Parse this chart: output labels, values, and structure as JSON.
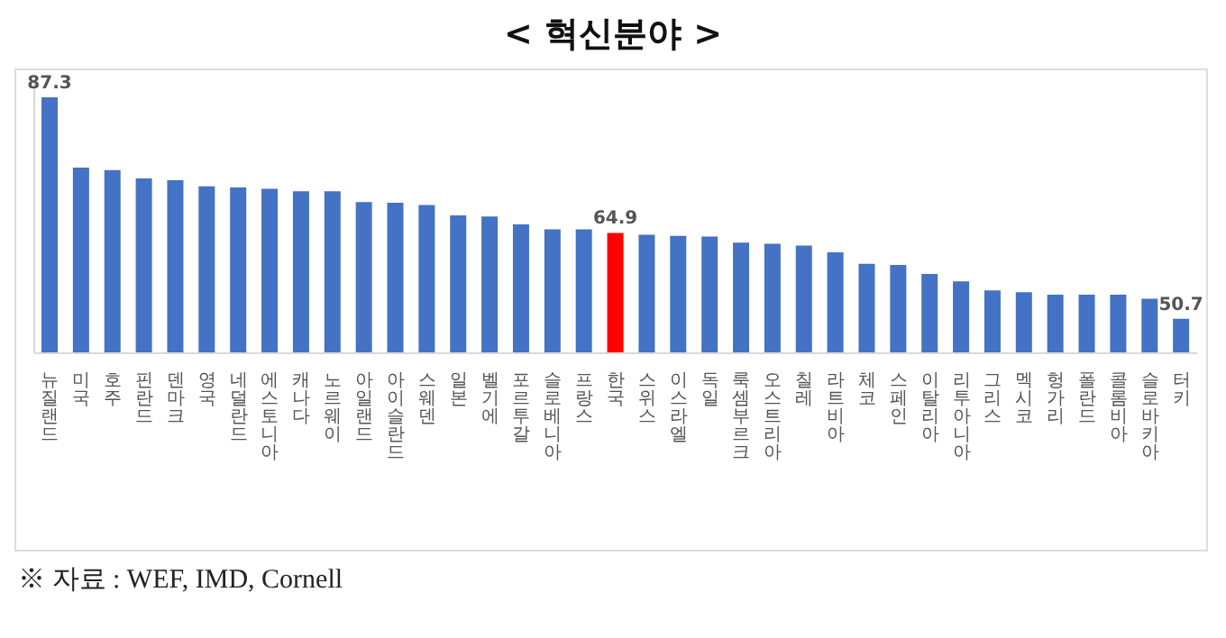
{
  "chart_data": {
    "type": "bar",
    "title": "< 혁신분야 >",
    "categories": [
      "뉴질랜드",
      "미국",
      "호주",
      "핀란드",
      "덴마크",
      "영국",
      "네덜란드",
      "에스토니아",
      "캐나다",
      "노르웨이",
      "아일랜드",
      "아이슬란드",
      "스웨덴",
      "일본",
      "벨기에",
      "포르투갈",
      "슬로베니아",
      "프랑스",
      "한국",
      "스위스",
      "이스라엘",
      "독일",
      "룩셈부르크",
      "오스트리아",
      "칠레",
      "라트비아",
      "체코",
      "스페인",
      "이탈리아",
      "리투아니아",
      "그리스",
      "멕시코",
      "헝가리",
      "폴란드",
      "콜롬비아",
      "슬로바키아",
      "터키"
    ],
    "values": [
      87.3,
      75.7,
      75.3,
      73.9,
      73.6,
      72.6,
      72.4,
      72.2,
      71.8,
      71.8,
      70.0,
      69.9,
      69.5,
      67.8,
      67.6,
      66.3,
      65.5,
      65.5,
      64.9,
      64.6,
      64.4,
      64.3,
      63.3,
      63.1,
      62.8,
      61.7,
      59.8,
      59.6,
      58.1,
      56.9,
      55.4,
      55.1,
      54.7,
      54.7,
      54.7,
      54.0,
      50.7
    ],
    "colors": [
      "#4472c4",
      "#4472c4",
      "#4472c4",
      "#4472c4",
      "#4472c4",
      "#4472c4",
      "#4472c4",
      "#4472c4",
      "#4472c4",
      "#4472c4",
      "#4472c4",
      "#4472c4",
      "#4472c4",
      "#4472c4",
      "#4472c4",
      "#4472c4",
      "#4472c4",
      "#4472c4",
      "#ff0000",
      "#4472c4",
      "#4472c4",
      "#4472c4",
      "#4472c4",
      "#4472c4",
      "#4472c4",
      "#4472c4",
      "#4472c4",
      "#4472c4",
      "#4472c4",
      "#4472c4",
      "#4472c4",
      "#4472c4",
      "#4472c4",
      "#4472c4",
      "#4472c4",
      "#4472c4",
      "#4472c4"
    ],
    "value_labels": [
      "87.3",
      null,
      null,
      null,
      null,
      null,
      null,
      null,
      null,
      null,
      null,
      null,
      null,
      null,
      null,
      null,
      null,
      null,
      "64.9",
      null,
      null,
      null,
      null,
      null,
      null,
      null,
      null,
      null,
      null,
      null,
      null,
      null,
      null,
      null,
      null,
      null,
      "50.7"
    ],
    "ylim": [
      45,
      90
    ],
    "tick_labels": "x",
    "annotations": [
      "※ 자료 : WEF, IMD, Cornell"
    ]
  }
}
